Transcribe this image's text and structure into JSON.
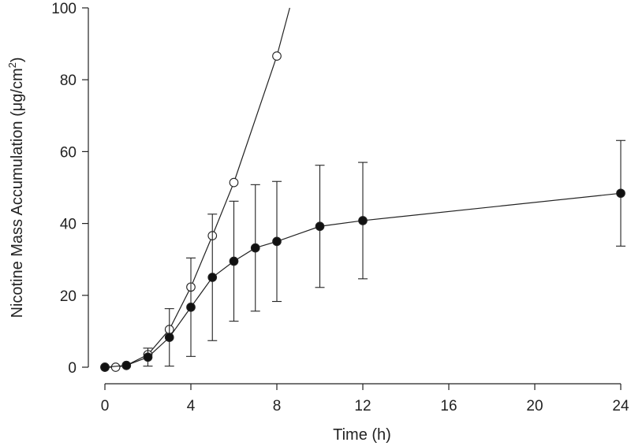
{
  "chart_data": {
    "type": "line",
    "title": "",
    "xlabel": "Time (h)",
    "ylabel_main": "Nicotine Mass Accumulation (μg/cm",
    "ylabel_sup": "2",
    "ylabel_close": ")",
    "xlim": [
      0,
      24
    ],
    "ylim": [
      0,
      100
    ],
    "xticks": [
      0,
      4,
      8,
      12,
      16,
      20,
      24
    ],
    "yticks": [
      0,
      20,
      40,
      60,
      80,
      100
    ],
    "grid": false,
    "colors": {
      "line": "#222222",
      "filled": "#111111",
      "open": "#ffffff"
    },
    "series": [
      {
        "marker": "open",
        "x": [
          0,
          0.5,
          1,
          2,
          3,
          4,
          5,
          6,
          8
        ],
        "y": [
          0,
          0,
          0.5,
          3.5,
          10.5,
          22.3,
          36.6,
          51.4,
          86.6
        ],
        "extends_to": [
          8.6,
          100
        ]
      },
      {
        "marker": "filled",
        "x": [
          0,
          1,
          2,
          3,
          4,
          5,
          6,
          7,
          8,
          10,
          12,
          24
        ],
        "y": [
          0,
          0.5,
          2.8,
          8.3,
          16.7,
          25,
          29.5,
          33.2,
          35,
          39.2,
          40.8,
          48.4
        ],
        "err": [
          0,
          0,
          2.5,
          8,
          13.7,
          17.6,
          16.7,
          17.6,
          16.7,
          17,
          16.2,
          14.7
        ]
      }
    ]
  }
}
